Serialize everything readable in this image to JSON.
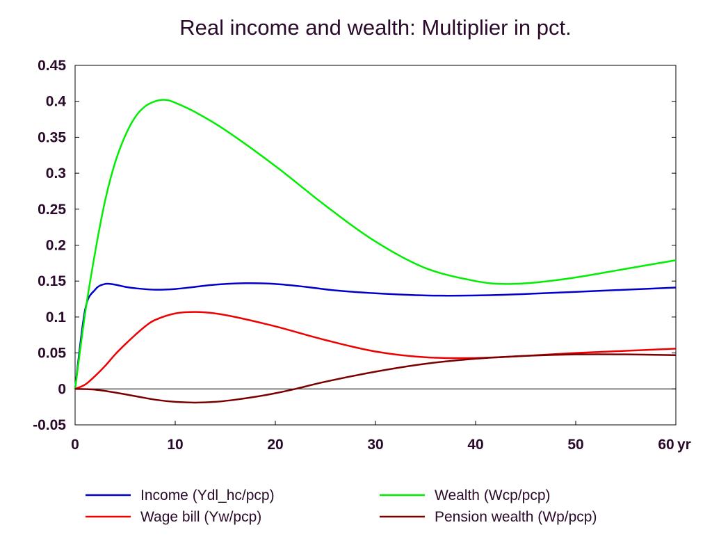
{
  "chart_data": {
    "type": "line",
    "title": "Real income and wealth: Multiplier in pct.",
    "xlabel": "",
    "ylabel": "",
    "x_unit_label": "yr",
    "xlim": [
      0,
      60
    ],
    "ylim": [
      -0.05,
      0.45
    ],
    "x_ticks": [
      "0",
      "10",
      "20",
      "30",
      "40",
      "50",
      "60"
    ],
    "y_ticks": [
      "-0.05",
      "0",
      "0.05",
      "0.1",
      "0.15",
      "0.2",
      "0.25",
      "0.3",
      "0.35",
      "0.4",
      "0.45"
    ],
    "grid": false,
    "legend_position": "bottom",
    "series": [
      {
        "name": "Income (Ydl_hc/pcp)",
        "color": "#0000cc",
        "points": [
          [
            0,
            0
          ],
          [
            1,
            0.11
          ],
          [
            2,
            0.138
          ],
          [
            3,
            0.146
          ],
          [
            4,
            0.145
          ],
          [
            5,
            0.142
          ],
          [
            6,
            0.14
          ],
          [
            8,
            0.138
          ],
          [
            10,
            0.139
          ],
          [
            12,
            0.142
          ],
          [
            14,
            0.145
          ],
          [
            17,
            0.147
          ],
          [
            20,
            0.146
          ],
          [
            23,
            0.142
          ],
          [
            26,
            0.137
          ],
          [
            30,
            0.133
          ],
          [
            35,
            0.13
          ],
          [
            40,
            0.13
          ],
          [
            45,
            0.132
          ],
          [
            50,
            0.135
          ],
          [
            55,
            0.138
          ],
          [
            60,
            0.141
          ]
        ]
      },
      {
        "name": "Wealth (Wcp/pcp)",
        "color": "#00ee00",
        "points": [
          [
            0,
            0
          ],
          [
            1,
            0.105
          ],
          [
            2,
            0.19
          ],
          [
            3,
            0.262
          ],
          [
            4,
            0.315
          ],
          [
            5,
            0.352
          ],
          [
            6,
            0.378
          ],
          [
            7,
            0.393
          ],
          [
            8,
            0.4
          ],
          [
            9,
            0.402
          ],
          [
            10,
            0.398
          ],
          [
            12,
            0.385
          ],
          [
            15,
            0.36
          ],
          [
            20,
            0.31
          ],
          [
            25,
            0.255
          ],
          [
            30,
            0.205
          ],
          [
            35,
            0.168
          ],
          [
            40,
            0.15
          ],
          [
            43,
            0.146
          ],
          [
            46,
            0.148
          ],
          [
            50,
            0.155
          ],
          [
            55,
            0.167
          ],
          [
            60,
            0.179
          ]
        ]
      },
      {
        "name": "Wage bill (Yw/pcp)",
        "color": "#ee0000",
        "points": [
          [
            0,
            0
          ],
          [
            1,
            0.006
          ],
          [
            2,
            0.018
          ],
          [
            3,
            0.032
          ],
          [
            4,
            0.048
          ],
          [
            5,
            0.062
          ],
          [
            6,
            0.075
          ],
          [
            7,
            0.087
          ],
          [
            8,
            0.096
          ],
          [
            10,
            0.105
          ],
          [
            12,
            0.107
          ],
          [
            14,
            0.105
          ],
          [
            16,
            0.1
          ],
          [
            20,
            0.087
          ],
          [
            25,
            0.068
          ],
          [
            30,
            0.052
          ],
          [
            35,
            0.044
          ],
          [
            40,
            0.043
          ],
          [
            45,
            0.046
          ],
          [
            50,
            0.05
          ],
          [
            55,
            0.053
          ],
          [
            60,
            0.056
          ]
        ]
      },
      {
        "name": "Pension wealth (Wp/pcp)",
        "color": "#7a0000",
        "points": [
          [
            0,
            0
          ],
          [
            2,
            -0.001
          ],
          [
            4,
            -0.005
          ],
          [
            6,
            -0.01
          ],
          [
            8,
            -0.015
          ],
          [
            10,
            -0.018
          ],
          [
            12,
            -0.019
          ],
          [
            14,
            -0.018
          ],
          [
            16,
            -0.015
          ],
          [
            18,
            -0.011
          ],
          [
            20,
            -0.006
          ],
          [
            22,
            0
          ],
          [
            25,
            0.01
          ],
          [
            30,
            0.024
          ],
          [
            35,
            0.035
          ],
          [
            40,
            0.042
          ],
          [
            45,
            0.046
          ],
          [
            50,
            0.048
          ],
          [
            55,
            0.048
          ],
          [
            60,
            0.047
          ]
        ]
      }
    ]
  }
}
